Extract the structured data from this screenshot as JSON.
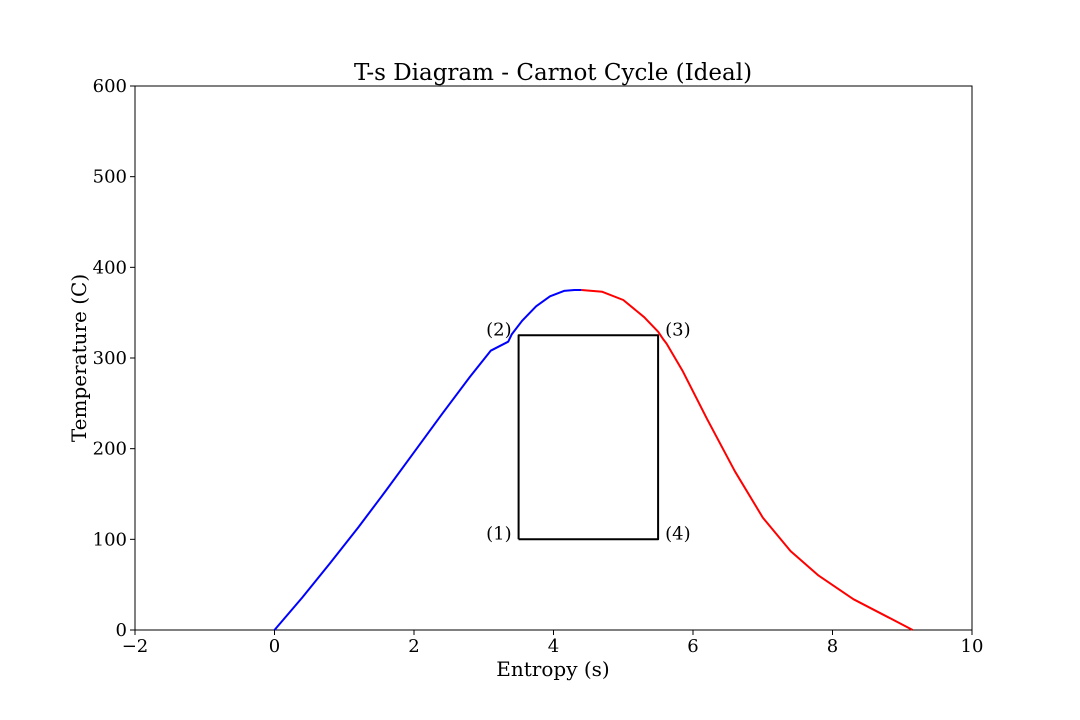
{
  "chart_data": {
    "type": "line",
    "title": "T-s Diagram - Carnot Cycle (Ideal)",
    "xlabel": "Entropy (s)",
    "ylabel": "Temperature (C)",
    "xlim": [
      -2,
      10
    ],
    "ylim": [
      0,
      600
    ],
    "grid": false,
    "x_ticks": [
      -2,
      0,
      2,
      4,
      6,
      8,
      10
    ],
    "x_tick_labels": [
      "−2",
      "0",
      "2",
      "4",
      "6",
      "8",
      "10"
    ],
    "y_ticks": [
      0,
      100,
      200,
      300,
      400,
      500,
      600
    ],
    "y_tick_labels": [
      "0",
      "100",
      "200",
      "300",
      "400",
      "500",
      "600"
    ],
    "series": [
      {
        "role": "saturated-liquid-line",
        "color": "#0000ff",
        "x": [
          0.0,
          0.4,
          0.8,
          1.2,
          1.6,
          2.0,
          2.4,
          2.8,
          3.1,
          3.35,
          3.4,
          3.55,
          3.75,
          3.95,
          4.15,
          4.3,
          4.4
        ],
        "y": [
          0,
          36,
          74,
          113,
          154,
          196,
          238,
          279,
          308,
          318,
          326,
          341,
          357,
          368,
          374,
          375,
          375
        ]
      },
      {
        "role": "saturated-vapor-line",
        "color": "#ff0000",
        "x": [
          4.4,
          4.7,
          5.0,
          5.3,
          5.5,
          5.58,
          5.62,
          5.85,
          6.2,
          6.6,
          7.0,
          7.4,
          7.8,
          8.3,
          8.8,
          9.15
        ],
        "y": [
          375,
          373,
          364,
          345,
          329,
          320,
          316,
          286,
          233,
          175,
          124,
          87,
          60,
          34,
          14,
          0
        ]
      },
      {
        "role": "carnot-cycle",
        "color": "#000000",
        "x": [
          3.5,
          3.5,
          5.5,
          5.5,
          3.5
        ],
        "y": [
          100,
          325,
          325,
          100,
          100
        ]
      }
    ],
    "points": [
      {
        "label": "(1)",
        "x": 3.5,
        "y": 100,
        "anchor": "left"
      },
      {
        "label": "(2)",
        "x": 3.5,
        "y": 325,
        "anchor": "left"
      },
      {
        "label": "(3)",
        "x": 5.5,
        "y": 325,
        "anchor": "right"
      },
      {
        "label": "(4)",
        "x": 5.5,
        "y": 100,
        "anchor": "right"
      }
    ]
  }
}
